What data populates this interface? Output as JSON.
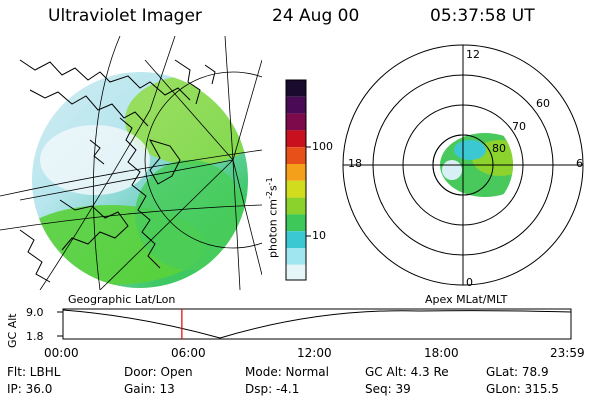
{
  "header": {
    "instrument": "Ultraviolet Imager",
    "date": "24 Aug 00",
    "time": "05:37:58 UT"
  },
  "colorbar": {
    "label_main": "photon cm",
    "label_sup1": "-2",
    "label_s": "s",
    "label_sup2": "-1",
    "ticks": [
      "100",
      "10"
    ],
    "colors": [
      "#1a0a2e",
      "#4b0a55",
      "#7d0a4a",
      "#c8101e",
      "#e8501a",
      "#f5a01a",
      "#d2dc1e",
      "#8cd22d",
      "#3ec85a",
      "#3cc8d2",
      "#a0e6f0",
      "#e6f5f8"
    ]
  },
  "left_map": {
    "caption": "Geographic Lat/Lon"
  },
  "right_map": {
    "caption": "Apex MLat/MLT",
    "mlt_labels": [
      "12",
      "18",
      "6",
      "0"
    ],
    "lat_labels": [
      "60",
      "70",
      "80"
    ]
  },
  "timeline": {
    "ylabel": "GC Alt",
    "y_ticks": [
      "9.0",
      "1.8"
    ],
    "x_ticks": [
      "00:00",
      "06:00",
      "12:00",
      "18:00",
      "23:59"
    ],
    "current_fraction": 0.234,
    "line_color": "#e00000"
  },
  "footer": {
    "row1": [
      "Flt: LBHL",
      "Door: Open",
      "Mode: Normal",
      "GC Alt: 4.3 Re",
      "GLat:  78.9"
    ],
    "row2": [
      "IP: 36.0",
      "Gain: 13",
      "Dsp:    -4.1",
      "Seq: 39",
      "GLon: 315.5"
    ]
  }
}
